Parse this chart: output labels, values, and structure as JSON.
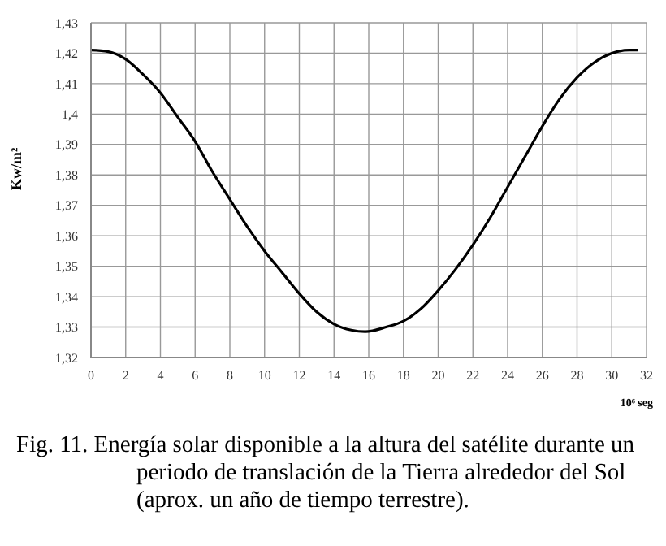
{
  "chart_data": {
    "type": "line",
    "xlabel": "10⁶ seg",
    "ylabel": "Kw/m²",
    "annotations": [
      "Fig. 11. Energía solar disponible a la altura del satélite durante un periodo de translación de la Tierra alrededor del Sol (aprox. un año de tiempo terrestre)."
    ],
    "x": [
      0,
      1,
      2,
      3,
      4,
      5,
      6,
      7,
      8,
      9,
      10,
      11,
      12,
      13,
      14,
      15,
      15.8,
      17,
      18,
      19,
      20,
      21,
      22,
      23,
      24,
      25,
      26,
      27,
      28,
      29,
      30,
      31,
      31.5
    ],
    "series": [
      {
        "color": "#000000",
        "values": [
          1.421,
          1.4205,
          1.418,
          1.413,
          1.407,
          1.399,
          1.391,
          1.381,
          1.372,
          1.363,
          1.355,
          1.348,
          1.341,
          1.335,
          1.331,
          1.329,
          1.3285,
          1.33,
          1.332,
          1.336,
          1.342,
          1.349,
          1.357,
          1.366,
          1.376,
          1.386,
          1.396,
          1.405,
          1.412,
          1.417,
          1.42,
          1.421,
          1.421
        ]
      }
    ],
    "xlim": [
      0,
      32
    ],
    "xticks": [
      0,
      2,
      4,
      6,
      8,
      10,
      12,
      14,
      16,
      18,
      20,
      22,
      24,
      26,
      28,
      30,
      32
    ],
    "ylim": [
      1.32,
      1.43
    ],
    "yticks": [
      {
        "value": 1.32,
        "label": "1,32"
      },
      {
        "value": 1.33,
        "label": "1,33"
      },
      {
        "value": 1.34,
        "label": "1,34"
      },
      {
        "value": 1.35,
        "label": "1,35"
      },
      {
        "value": 1.36,
        "label": "1,36"
      },
      {
        "value": 1.37,
        "label": "1,37"
      },
      {
        "value": 1.38,
        "label": "1,38"
      },
      {
        "value": 1.39,
        "label": "1,39"
      },
      {
        "value": 1.4,
        "label": "1,4"
      },
      {
        "value": 1.41,
        "label": "1,41"
      },
      {
        "value": 1.42,
        "label": "1,42"
      },
      {
        "value": 1.43,
        "label": "1,43"
      }
    ],
    "grid": true,
    "marker": "none",
    "line_style": "solid",
    "legend": false
  }
}
